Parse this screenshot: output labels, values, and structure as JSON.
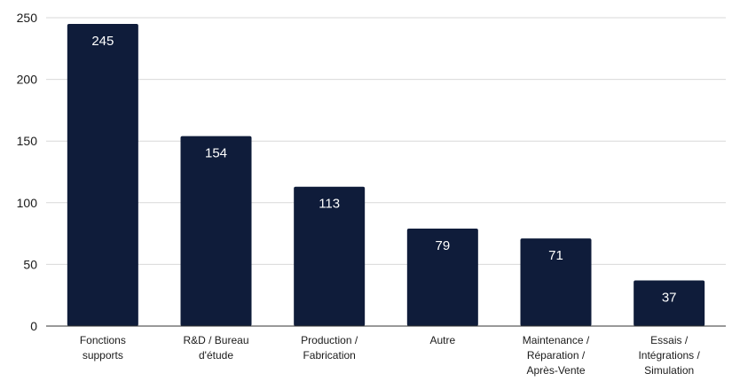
{
  "chart_data": {
    "type": "bar",
    "categories": [
      [
        "Fonctions",
        "supports"
      ],
      [
        "R&D / Bureau",
        "d'étude"
      ],
      [
        "Production /",
        "Fabrication"
      ],
      [
        "Autre"
      ],
      [
        "Maintenance /",
        "Réparation /",
        "Après-Vente"
      ],
      [
        "Essais /",
        "Intégrations /",
        "Simulation"
      ]
    ],
    "values": [
      245,
      154,
      113,
      79,
      71,
      37
    ],
    "ylim": [
      0,
      250
    ],
    "yticks": [
      0,
      50,
      100,
      150,
      200,
      250
    ],
    "grid": true,
    "data_labels": true,
    "colors": {
      "bar": "#0f1c3a",
      "grid": "#d9d9d9",
      "axis": "#333333"
    }
  }
}
